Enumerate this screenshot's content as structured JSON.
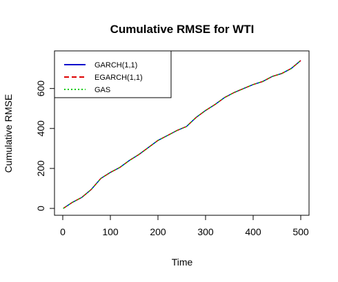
{
  "chart_data": {
    "type": "line",
    "title": "Cumulative RMSE for WTI",
    "xlabel": "Time",
    "ylabel": "Cumulative RMSE",
    "xlim": [
      0,
      500
    ],
    "ylim": [
      0,
      740
    ],
    "x_ticks": [
      0,
      100,
      200,
      300,
      400,
      500
    ],
    "y_ticks": [
      0,
      200,
      400,
      600
    ],
    "legend_position": "top-left",
    "x": [
      1,
      20,
      40,
      60,
      80,
      100,
      120,
      140,
      160,
      180,
      200,
      220,
      240,
      260,
      280,
      300,
      320,
      340,
      360,
      380,
      400,
      420,
      440,
      460,
      480,
      500
    ],
    "series": [
      {
        "name": "GARCH(1,1)",
        "color": "#0000cc",
        "line_style": "solid",
        "values": [
          0,
          30,
          55,
          95,
          150,
          180,
          205,
          240,
          270,
          305,
          340,
          365,
          390,
          410,
          455,
          490,
          520,
          555,
          580,
          600,
          620,
          635,
          660,
          675,
          700,
          740
        ]
      },
      {
        "name": "EGARCH(1,1)",
        "color": "#dd0000",
        "line_style": "dashed",
        "values": [
          0,
          30,
          55,
          95,
          150,
          180,
          205,
          240,
          270,
          305,
          340,
          365,
          390,
          410,
          455,
          490,
          520,
          555,
          580,
          600,
          620,
          635,
          660,
          675,
          700,
          740
        ]
      },
      {
        "name": "GAS",
        "color": "#00cc00",
        "line_style": "dotted",
        "values": [
          0,
          30,
          55,
          95,
          150,
          180,
          205,
          240,
          270,
          305,
          340,
          365,
          390,
          410,
          455,
          490,
          520,
          555,
          580,
          600,
          620,
          635,
          660,
          675,
          700,
          740
        ]
      }
    ]
  }
}
